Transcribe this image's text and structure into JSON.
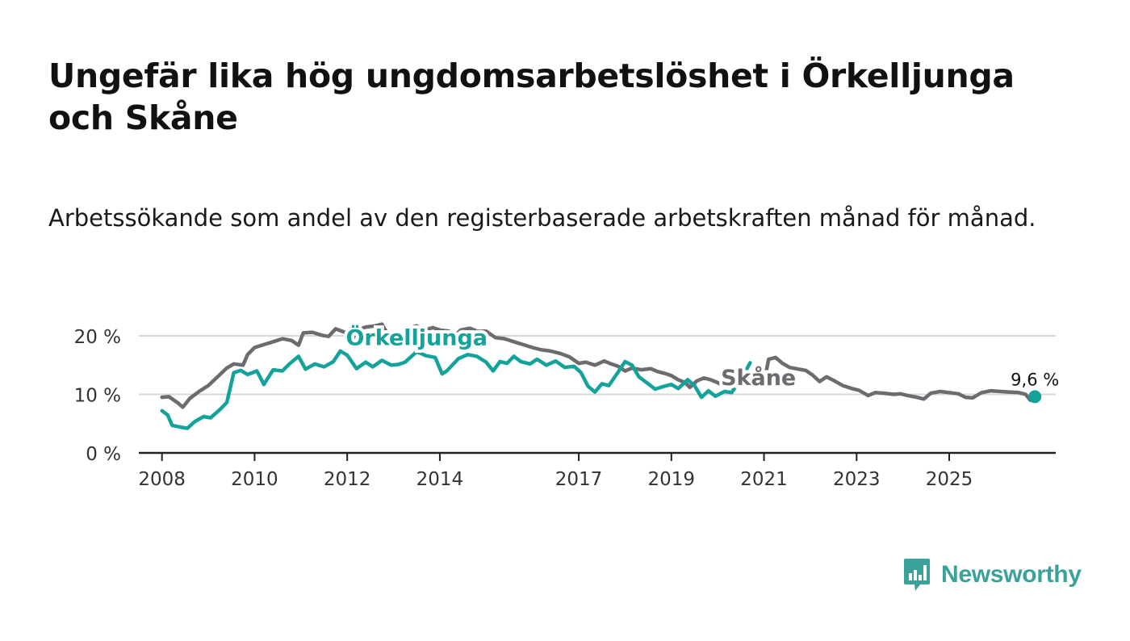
{
  "title": "Ungefär lika hög ungdomsarbetslöshet i Örkelljunga och Skåne",
  "subtitle": "Arbetssökande som andel av den registerbaserade arbetskraften månad för månad.",
  "brand": {
    "name": "Newsworthy",
    "color": "#3aa19b"
  },
  "colors": {
    "orkelljunga": "#14a39a",
    "skane": "#6e6b70",
    "grid": "#d9d9d9",
    "axis": "#222222"
  },
  "chart_data": {
    "type": "line",
    "title": "Ungefär lika hög ungdomsarbetslöshet i Örkelljunga och Skåne",
    "xlabel": "",
    "ylabel": "",
    "xlim": [
      2007.5,
      2027.3
    ],
    "ylim": [
      0,
      20
    ],
    "y_ticks": [
      {
        "value": 0,
        "label": "0 %"
      },
      {
        "value": 10,
        "label": "10 %"
      },
      {
        "value": 20,
        "label": "20 %"
      }
    ],
    "x_ticks": [
      {
        "value": 2008,
        "label": "2008"
      },
      {
        "value": 2010,
        "label": "2010"
      },
      {
        "value": 2012,
        "label": "2012"
      },
      {
        "value": 2014,
        "label": "2014"
      },
      {
        "value": 2017,
        "label": "2017"
      },
      {
        "value": 2019,
        "label": "2019"
      },
      {
        "value": 2021,
        "label": "2021"
      },
      {
        "value": 2023,
        "label": "2023"
      },
      {
        "value": 2025,
        "label": "2025"
      }
    ],
    "series": [
      {
        "name": "Skåne",
        "label": "Skåne",
        "color": "#6e6b70",
        "points": [
          [
            2008.0,
            9.5
          ],
          [
            2008.15,
            9.6
          ],
          [
            2008.35,
            8.5
          ],
          [
            2008.45,
            7.8
          ],
          [
            2008.6,
            9.3
          ],
          [
            2008.8,
            10.5
          ],
          [
            2009.0,
            11.5
          ],
          [
            2009.2,
            13.0
          ],
          [
            2009.4,
            14.5
          ],
          [
            2009.55,
            15.2
          ],
          [
            2009.75,
            15.0
          ],
          [
            2009.85,
            16.8
          ],
          [
            2010.0,
            18.0
          ],
          [
            2010.2,
            18.5
          ],
          [
            2010.4,
            19.0
          ],
          [
            2010.6,
            19.5
          ],
          [
            2010.8,
            19.2
          ],
          [
            2010.95,
            18.4
          ],
          [
            2011.05,
            20.5
          ],
          [
            2011.25,
            20.6
          ],
          [
            2011.45,
            20.1
          ],
          [
            2011.6,
            19.9
          ],
          [
            2011.75,
            21.2
          ],
          [
            2011.95,
            20.6
          ],
          [
            2012.1,
            19.0
          ],
          [
            2012.2,
            21.0
          ],
          [
            2012.4,
            21.5
          ],
          [
            2012.6,
            21.7
          ],
          [
            2012.75,
            22.0
          ],
          [
            2012.85,
            20.6
          ],
          [
            2013.0,
            20.4
          ],
          [
            2013.15,
            19.0
          ],
          [
            2013.3,
            21.2
          ],
          [
            2013.5,
            21.7
          ],
          [
            2013.65,
            21.0
          ],
          [
            2013.85,
            21.4
          ],
          [
            2014.0,
            21.0
          ],
          [
            2014.2,
            20.8
          ],
          [
            2014.3,
            19.8
          ],
          [
            2014.45,
            21.0
          ],
          [
            2014.65,
            21.3
          ],
          [
            2014.8,
            20.8
          ],
          [
            2015.0,
            20.8
          ],
          [
            2015.2,
            19.7
          ],
          [
            2015.4,
            19.5
          ],
          [
            2015.6,
            19.0
          ],
          [
            2015.8,
            18.5
          ],
          [
            2016.0,
            18.0
          ],
          [
            2016.2,
            17.6
          ],
          [
            2016.4,
            17.4
          ],
          [
            2016.6,
            17.0
          ],
          [
            2016.8,
            16.4
          ],
          [
            2017.0,
            15.3
          ],
          [
            2017.15,
            15.5
          ],
          [
            2017.35,
            15.0
          ],
          [
            2017.55,
            15.7
          ],
          [
            2017.7,
            15.2
          ],
          [
            2017.85,
            14.8
          ],
          [
            2018.0,
            14.0
          ],
          [
            2018.15,
            14.5
          ],
          [
            2018.35,
            14.2
          ],
          [
            2018.55,
            14.4
          ],
          [
            2018.7,
            13.9
          ],
          [
            2018.85,
            13.6
          ],
          [
            2019.0,
            13.2
          ],
          [
            2019.15,
            12.5
          ],
          [
            2019.3,
            12.0
          ],
          [
            2019.4,
            11.2
          ],
          [
            2019.55,
            12.3
          ],
          [
            2019.7,
            12.8
          ],
          [
            2019.85,
            12.5
          ],
          [
            2020.0,
            12.0
          ],
          [
            2020.1,
            11.5
          ],
          [
            2020.3,
            11.3
          ],
          [
            2020.7,
            12.5
          ],
          [
            2021.05,
            14.0
          ],
          [
            2021.1,
            16.0
          ],
          [
            2021.25,
            16.3
          ],
          [
            2021.4,
            15.3
          ],
          [
            2021.55,
            14.6
          ],
          [
            2021.75,
            14.3
          ],
          [
            2021.9,
            14.1
          ],
          [
            2022.05,
            13.3
          ],
          [
            2022.2,
            12.2
          ],
          [
            2022.35,
            13.0
          ],
          [
            2022.5,
            12.4
          ],
          [
            2022.7,
            11.5
          ],
          [
            2022.9,
            11.0
          ],
          [
            2023.05,
            10.7
          ],
          [
            2023.25,
            9.8
          ],
          [
            2023.4,
            10.3
          ],
          [
            2023.6,
            10.2
          ],
          [
            2023.8,
            10.0
          ],
          [
            2023.95,
            10.1
          ],
          [
            2024.1,
            9.8
          ],
          [
            2024.3,
            9.5
          ],
          [
            2024.45,
            9.2
          ],
          [
            2024.6,
            10.2
          ],
          [
            2024.8,
            10.5
          ],
          [
            2025.0,
            10.3
          ],
          [
            2025.2,
            10.1
          ],
          [
            2025.35,
            9.5
          ],
          [
            2025.5,
            9.4
          ],
          [
            2025.7,
            10.3
          ],
          [
            2025.9,
            10.6
          ],
          [
            2026.1,
            10.5
          ],
          [
            2026.3,
            10.4
          ],
          [
            2026.5,
            10.3
          ],
          [
            2026.65,
            10.0
          ],
          [
            2026.75,
            9.0
          ]
        ]
      },
      {
        "name": "Örkelljunga",
        "label": "Örkelljunga",
        "color": "#14a39a",
        "points": [
          [
            2008.0,
            7.2
          ],
          [
            2008.12,
            6.5
          ],
          [
            2008.22,
            4.7
          ],
          [
            2008.4,
            4.4
          ],
          [
            2008.55,
            4.2
          ],
          [
            2008.7,
            5.3
          ],
          [
            2008.9,
            6.2
          ],
          [
            2009.05,
            6.0
          ],
          [
            2009.25,
            7.4
          ],
          [
            2009.4,
            8.6
          ],
          [
            2009.55,
            13.7
          ],
          [
            2009.7,
            14.1
          ],
          [
            2009.85,
            13.4
          ],
          [
            2010.05,
            14.0
          ],
          [
            2010.2,
            11.7
          ],
          [
            2010.4,
            14.2
          ],
          [
            2010.6,
            14.0
          ],
          [
            2010.75,
            15.2
          ],
          [
            2010.95,
            16.5
          ],
          [
            2011.1,
            14.3
          ],
          [
            2011.3,
            15.2
          ],
          [
            2011.5,
            14.7
          ],
          [
            2011.7,
            15.6
          ],
          [
            2011.85,
            17.4
          ],
          [
            2012.0,
            16.7
          ],
          [
            2012.2,
            14.4
          ],
          [
            2012.4,
            15.5
          ],
          [
            2012.55,
            14.7
          ],
          [
            2012.75,
            15.8
          ],
          [
            2012.95,
            15.0
          ],
          [
            2013.1,
            15.1
          ],
          [
            2013.25,
            15.5
          ],
          [
            2013.5,
            17.3
          ],
          [
            2013.7,
            16.6
          ],
          [
            2013.9,
            16.3
          ],
          [
            2014.05,
            13.5
          ],
          [
            2014.15,
            14.0
          ],
          [
            2014.4,
            16.1
          ],
          [
            2014.6,
            16.8
          ],
          [
            2014.8,
            16.5
          ],
          [
            2015.0,
            15.5
          ],
          [
            2015.15,
            14.0
          ],
          [
            2015.3,
            15.6
          ],
          [
            2015.45,
            15.3
          ],
          [
            2015.6,
            16.5
          ],
          [
            2015.75,
            15.6
          ],
          [
            2015.95,
            15.2
          ],
          [
            2016.1,
            16.0
          ],
          [
            2016.3,
            15.0
          ],
          [
            2016.5,
            15.7
          ],
          [
            2016.7,
            14.6
          ],
          [
            2016.9,
            14.8
          ],
          [
            2017.05,
            13.7
          ],
          [
            2017.2,
            11.4
          ],
          [
            2017.35,
            10.4
          ],
          [
            2017.5,
            11.8
          ],
          [
            2017.65,
            11.5
          ],
          [
            2017.85,
            13.8
          ],
          [
            2018.0,
            15.6
          ],
          [
            2018.15,
            15.0
          ],
          [
            2018.3,
            13.0
          ],
          [
            2018.5,
            11.8
          ],
          [
            2018.65,
            10.9
          ],
          [
            2018.85,
            11.4
          ],
          [
            2019.0,
            11.7
          ],
          [
            2019.15,
            11.0
          ],
          [
            2019.35,
            12.5
          ],
          [
            2019.5,
            11.5
          ],
          [
            2019.65,
            9.5
          ],
          [
            2019.8,
            10.6
          ],
          [
            2019.95,
            9.7
          ],
          [
            2020.15,
            10.5
          ],
          [
            2020.3,
            10.3
          ],
          [
            2020.55,
            13.2
          ],
          [
            2020.7,
            15.4
          ]
        ]
      }
    ],
    "annotations": [
      {
        "text": "Örkelljunga",
        "series": "Örkelljunga",
        "at": [
          2013.5,
          18.4
        ]
      },
      {
        "text": "Skåne",
        "series": "Skåne",
        "at": [
          2020.88,
          11.6
        ]
      },
      {
        "text": "9,6 %",
        "series": "Örkelljunga",
        "at": [
          2026.85,
          9.6
        ],
        "marker": true
      }
    ]
  }
}
